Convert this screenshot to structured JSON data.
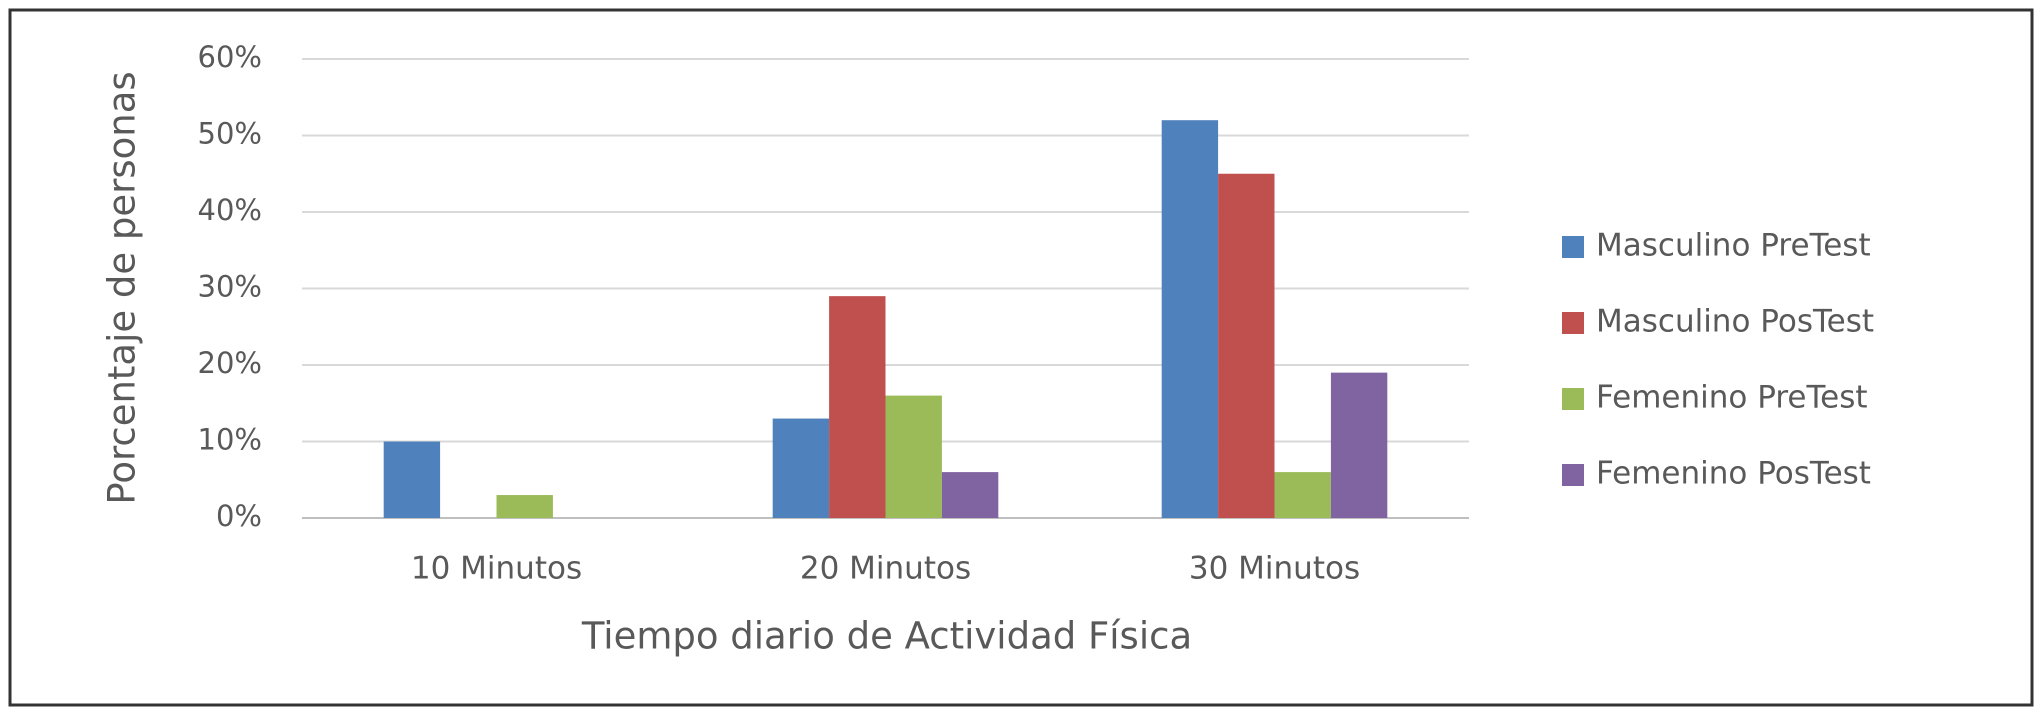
{
  "chart_data": {
    "type": "bar",
    "categories": [
      "10 Minutos",
      "20 Minutos",
      "30 Minutos"
    ],
    "series": [
      {
        "name": "Masculino PreTest",
        "color": "#4f81bd",
        "values": [
          10,
          13,
          52
        ]
      },
      {
        "name": "Masculino PosTest",
        "color": "#c0504d",
        "values": [
          0,
          29,
          45
        ]
      },
      {
        "name": "Femenino PreTest",
        "color": "#9bbb59",
        "values": [
          3,
          16,
          6
        ]
      },
      {
        "name": "Femenino PosTest",
        "color": "#8064a2",
        "values": [
          0,
          6,
          19
        ]
      }
    ],
    "xlabel": "Tiempo diario de Actividad Física",
    "ylabel": "Porcentaje de personas",
    "ylim": [
      0,
      60
    ],
    "yticks": [
      {
        "value": 0,
        "label": "0%"
      },
      {
        "value": 10,
        "label": "10%"
      },
      {
        "value": 20,
        "label": "20%"
      },
      {
        "value": 30,
        "label": "30%"
      },
      {
        "value": 40,
        "label": "40%"
      },
      {
        "value": 50,
        "label": "50%"
      },
      {
        "value": 60,
        "label": "60%"
      }
    ],
    "grid": true,
    "legend": "right"
  }
}
